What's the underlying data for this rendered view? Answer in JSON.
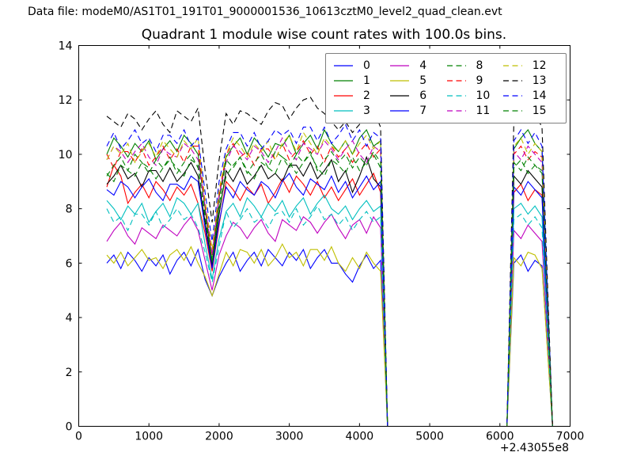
{
  "header": {
    "data_file_label": "Data file: modeM0/AS1T01_191T01_9000001536_10613cztM0_level2_quad_clean.evt"
  },
  "chart_data": {
    "type": "line",
    "title": "Quadrant 1 module wise count rates with 100.0s bins.",
    "xlabel": "",
    "ylabel": "",
    "xlim": [
      0,
      7000
    ],
    "ylim": [
      0,
      14
    ],
    "xticks": [
      0,
      1000,
      2000,
      3000,
      4000,
      5000,
      6000,
      7000
    ],
    "yticks": [
      0,
      2,
      4,
      6,
      8,
      10,
      12,
      14
    ],
    "x_offset_label": "+2.43055e8",
    "grid": false,
    "legend": {
      "position": "upper center",
      "columns": 4
    },
    "x": [
      400,
      500,
      600,
      700,
      800,
      900,
      1000,
      1100,
      1200,
      1300,
      1400,
      1500,
      1600,
      1700,
      1800,
      1900,
      2000,
      2100,
      2200,
      2300,
      2400,
      2500,
      2600,
      2700,
      2800,
      2900,
      3000,
      3100,
      3200,
      3300,
      3400,
      3500,
      3600,
      3700,
      3800,
      3900,
      4000,
      4100,
      4200,
      4300,
      4400,
      6100,
      6200,
      6300,
      6400,
      6500,
      6600,
      6750
    ],
    "series": [
      {
        "name": "0",
        "color": "#0000ff",
        "style": "solid",
        "values": [
          6.0,
          6.3,
          5.8,
          6.4,
          6.1,
          5.7,
          6.2,
          5.9,
          6.3,
          5.6,
          6.1,
          6.4,
          5.9,
          6.5,
          5.4,
          4.8,
          5.5,
          6.0,
          6.4,
          5.7,
          6.1,
          6.4,
          5.9,
          6.5,
          6.2,
          5.9,
          6.4,
          6.1,
          6.5,
          5.8,
          6.2,
          6.5,
          6.0,
          6.0,
          5.6,
          5.3,
          5.9,
          6.3,
          5.8,
          6.1,
          0,
          0,
          6.0,
          6.3,
          5.7,
          6.1,
          5.9,
          0
        ]
      },
      {
        "name": "1",
        "color": "#008000",
        "style": "solid",
        "values": [
          10.0,
          10.6,
          10.3,
          9.9,
          10.4,
          10.1,
          10.5,
          9.8,
          10.2,
          10.5,
          10.1,
          10.7,
          10.4,
          10.0,
          8.0,
          6.0,
          8.4,
          9.9,
          10.3,
          10.6,
          10.0,
          10.6,
          10.3,
          9.9,
          10.4,
          10.3,
          10.7,
          10.0,
          10.4,
          10.7,
          10.2,
          10.9,
          10.4,
          10.1,
          10.5,
          10.0,
          10.6,
          10.9,
          10.3,
          10.5,
          0,
          0,
          10.2,
          10.6,
          10.9,
          10.4,
          10.1,
          0
        ]
      },
      {
        "name": "2",
        "color": "#ff0000",
        "style": "solid",
        "values": [
          8.8,
          9.6,
          9.2,
          8.2,
          8.6,
          8.9,
          8.4,
          9.0,
          8.7,
          8.3,
          8.8,
          8.5,
          8.9,
          8.2,
          7.1,
          5.7,
          7.4,
          9.0,
          8.7,
          8.3,
          8.8,
          8.5,
          8.9,
          8.2,
          8.6,
          9.1,
          8.6,
          9.2,
          8.9,
          8.5,
          9.0,
          8.4,
          8.8,
          8.3,
          8.7,
          9.1,
          8.5,
          8.9,
          9.3,
          8.6,
          0,
          0,
          8.6,
          8.9,
          8.3,
          8.7,
          8.5,
          0
        ]
      },
      {
        "name": "3",
        "color": "#00bfbf",
        "style": "solid",
        "values": [
          8.3,
          8.0,
          7.6,
          8.1,
          7.8,
          8.2,
          7.5,
          7.9,
          8.2,
          7.7,
          8.4,
          8.2,
          7.8,
          8.2,
          6.7,
          5.4,
          6.9,
          7.9,
          8.2,
          7.7,
          8.4,
          8.1,
          7.7,
          8.2,
          7.9,
          8.3,
          7.7,
          8.1,
          8.4,
          7.8,
          8.2,
          8.5,
          8.0,
          7.8,
          8.1,
          7.6,
          8.0,
          8.3,
          7.9,
          8.1,
          0,
          0,
          8.0,
          8.2,
          7.8,
          8.1,
          7.7,
          0
        ]
      },
      {
        "name": "4",
        "color": "#bf00bf",
        "style": "solid",
        "values": [
          6.8,
          7.2,
          7.5,
          7.0,
          6.7,
          7.3,
          7.1,
          6.9,
          7.4,
          7.2,
          7.0,
          7.4,
          7.7,
          7.2,
          6.1,
          5.0,
          6.3,
          7.0,
          7.5,
          7.3,
          6.9,
          7.3,
          7.6,
          7.1,
          6.8,
          7.6,
          7.4,
          7.2,
          7.7,
          7.5,
          7.1,
          7.5,
          7.8,
          7.3,
          6.9,
          7.4,
          7.6,
          7.1,
          7.7,
          7.3,
          0,
          0,
          7.2,
          6.9,
          7.4,
          7.1,
          6.8,
          0
        ]
      },
      {
        "name": "5",
        "color": "#bfbf00",
        "style": "solid",
        "values": [
          6.3,
          6.0,
          6.4,
          5.9,
          6.2,
          6.5,
          6.1,
          6.2,
          5.8,
          6.3,
          6.5,
          6.1,
          6.6,
          6.0,
          5.5,
          4.8,
          5.6,
          6.4,
          5.9,
          6.5,
          6.4,
          6.0,
          6.5,
          5.9,
          6.2,
          6.7,
          6.2,
          6.4,
          5.9,
          6.5,
          6.5,
          6.1,
          6.6,
          6.0,
          5.7,
          6.2,
          5.8,
          6.4,
          6.0,
          5.7,
          0,
          0,
          6.2,
          5.9,
          6.4,
          6.3,
          5.8,
          0
        ]
      },
      {
        "name": "6",
        "color": "#000000",
        "style": "solid",
        "values": [
          8.9,
          9.2,
          9.6,
          9.1,
          9.3,
          8.8,
          9.4,
          9.4,
          9.0,
          9.5,
          9.0,
          9.3,
          9.7,
          9.2,
          7.5,
          5.9,
          7.8,
          9.4,
          9.0,
          9.5,
          8.9,
          9.2,
          9.6,
          9.1,
          9.3,
          9.0,
          9.6,
          9.6,
          9.2,
          9.7,
          9.1,
          9.4,
          9.8,
          9.0,
          9.4,
          8.6,
          9.2,
          9.9,
          9.1,
          8.8,
          0,
          0,
          9.2,
          8.9,
          9.4,
          9.1,
          8.8,
          0
        ]
      },
      {
        "name": "7",
        "color": "#0000ff",
        "style": "solid",
        "values": [
          8.7,
          8.5,
          9.0,
          8.8,
          8.4,
          8.8,
          9.1,
          8.6,
          8.3,
          8.9,
          8.9,
          8.7,
          9.2,
          9.0,
          7.3,
          5.8,
          7.5,
          8.8,
          8.4,
          9.0,
          8.7,
          8.5,
          9.0,
          8.8,
          8.4,
          9.0,
          9.3,
          8.8,
          8.5,
          9.1,
          8.9,
          8.7,
          9.2,
          8.6,
          9.0,
          8.4,
          8.8,
          9.2,
          8.7,
          9.0,
          0,
          0,
          8.8,
          8.5,
          9.0,
          8.7,
          8.4,
          0
        ]
      },
      {
        "name": "8",
        "color": "#008000",
        "style": "dashed",
        "values": [
          9.3,
          9.0,
          9.6,
          9.4,
          9.2,
          9.7,
          9.5,
          9.1,
          9.5,
          9.8,
          9.5,
          9.2,
          9.8,
          9.6,
          7.7,
          6.0,
          8.0,
          9.2,
          9.6,
          9.9,
          9.4,
          9.1,
          9.7,
          9.5,
          9.3,
          9.9,
          9.7,
          9.3,
          9.7,
          10.0,
          9.5,
          9.2,
          9.8,
          9.6,
          9.3,
          9.9,
          9.4,
          9.7,
          10.0,
          9.5,
          0,
          0,
          9.5,
          9.8,
          9.3,
          9.6,
          9.4,
          0
        ]
      },
      {
        "name": "9",
        "color": "#ff0000",
        "style": "dashed",
        "values": [
          10.0,
          9.5,
          10.1,
          10.1,
          9.7,
          10.2,
          9.6,
          9.9,
          10.3,
          9.8,
          10.2,
          9.7,
          10.3,
          10.3,
          8.1,
          6.3,
          8.5,
          10.0,
          10.4,
          9.9,
          10.1,
          9.6,
          10.2,
          10.2,
          9.8,
          10.4,
          9.8,
          10.1,
          10.5,
          10.0,
          10.3,
          9.7,
          10.3,
          9.9,
          10.2,
          9.7,
          10.1,
          10.4,
          9.9,
          10.2,
          0,
          0,
          10.0,
          10.3,
          9.8,
          10.1,
          9.9,
          0
        ]
      },
      {
        "name": "10",
        "color": "#00bfbf",
        "style": "dashed",
        "values": [
          8.0,
          7.5,
          7.7,
          7.2,
          7.8,
          7.8,
          7.4,
          7.9,
          7.3,
          7.6,
          8.0,
          7.6,
          7.8,
          7.3,
          6.4,
          5.3,
          6.6,
          7.9,
          7.3,
          7.6,
          8.0,
          7.5,
          7.7,
          7.3,
          7.8,
          7.9,
          7.5,
          8.0,
          7.4,
          7.7,
          8.1,
          7.6,
          7.8,
          7.4,
          7.7,
          7.2,
          7.6,
          7.9,
          7.5,
          7.7,
          0,
          0,
          7.6,
          7.8,
          7.4,
          7.7,
          7.3,
          0
        ]
      },
      {
        "name": "11",
        "color": "#bf00bf",
        "style": "dashed",
        "values": [
          9.8,
          10.3,
          10.1,
          9.7,
          10.1,
          10.4,
          9.9,
          9.6,
          10.2,
          10.0,
          9.9,
          10.4,
          10.2,
          9.8,
          8.1,
          6.3,
          8.5,
          9.7,
          10.3,
          10.1,
          9.8,
          10.3,
          10.1,
          9.7,
          10.1,
          10.6,
          10.1,
          9.8,
          10.4,
          10.2,
          10.0,
          10.5,
          10.2,
          9.8,
          10.2,
          10.5,
          10.0,
          9.7,
          10.3,
          10.1,
          0,
          0,
          10.1,
          9.8,
          10.3,
          10.0,
          9.7,
          0
        ]
      },
      {
        "name": "12",
        "color": "#bfbf00",
        "style": "dashed",
        "values": [
          9.8,
          10.3,
          10.0,
          10.4,
          9.7,
          10.1,
          10.4,
          9.9,
          10.5,
          10.2,
          9.9,
          10.5,
          10.2,
          10.6,
          8.3,
          6.5,
          8.7,
          10.0,
          10.6,
          10.3,
          9.9,
          10.4,
          10.1,
          10.5,
          9.8,
          10.4,
          10.7,
          10.1,
          10.8,
          10.4,
          10.0,
          10.6,
          10.3,
          10.1,
          10.5,
          10.0,
          10.4,
          10.7,
          10.2,
          10.5,
          0,
          0,
          10.3,
          10.6,
          10.0,
          10.4,
          10.1,
          0
        ]
      },
      {
        "name": "13",
        "color": "#000000",
        "style": "dashed",
        "values": [
          11.4,
          11.2,
          11.0,
          11.5,
          11.3,
          10.9,
          11.3,
          11.6,
          11.1,
          10.8,
          11.6,
          11.4,
          11.2,
          11.7,
          9.4,
          7.5,
          9.8,
          11.5,
          11.1,
          11.6,
          11.5,
          11.3,
          11.1,
          11.6,
          11.9,
          11.8,
          11.3,
          11.7,
          12.0,
          12.1,
          11.7,
          11.5,
          11.2,
          10.9,
          11.2,
          10.8,
          11.1,
          11.4,
          11.6,
          11.0,
          0,
          0,
          11.3,
          11.7,
          11.1,
          11.5,
          11.0,
          0
        ]
      },
      {
        "name": "14",
        "color": "#0000ff",
        "style": "dashed",
        "values": [
          10.3,
          10.8,
          10.2,
          10.5,
          10.9,
          10.4,
          10.6,
          10.1,
          10.7,
          10.7,
          10.4,
          10.9,
          10.3,
          10.6,
          8.6,
          6.8,
          9.0,
          10.2,
          10.8,
          10.8,
          10.3,
          10.8,
          10.2,
          10.5,
          10.9,
          10.7,
          10.9,
          10.4,
          11.0,
          11.0,
          10.5,
          11.0,
          10.4,
          10.7,
          11.1,
          10.5,
          10.9,
          10.3,
          10.8,
          10.6,
          0,
          0,
          10.5,
          10.9,
          10.4,
          10.8,
          10.3,
          0
        ]
      },
      {
        "name": "15",
        "color": "#008000",
        "style": "dashed",
        "values": [
          9.2,
          9.6,
          9.9,
          9.4,
          10.0,
          9.7,
          9.3,
          9.8,
          9.5,
          9.9,
          9.3,
          9.7,
          10.0,
          9.5,
          7.8,
          6.1,
          8.1,
          9.8,
          9.5,
          9.9,
          9.3,
          9.7,
          10.0,
          9.5,
          10.1,
          9.9,
          9.5,
          10.0,
          9.7,
          10.1,
          9.4,
          9.8,
          10.1,
          9.7,
          10.0,
          9.5,
          9.9,
          9.6,
          10.1,
          9.7,
          0,
          0,
          9.7,
          9.4,
          9.9,
          9.6,
          9.3,
          0
        ]
      }
    ]
  }
}
